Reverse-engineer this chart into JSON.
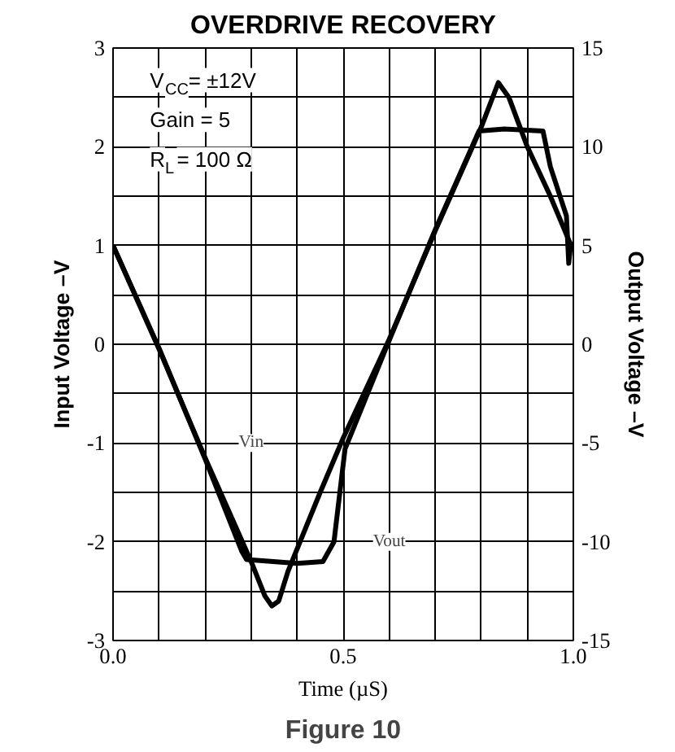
{
  "chart_data": {
    "type": "line",
    "title": "OVERDRIVE RECOVERY",
    "xlabel": "Time (µS)",
    "ylabel": "Input Voltage –V",
    "y2label": "Output Voltage –V",
    "annotations": [
      "V$_{CC}$= ±12V",
      "Gain = 5",
      "R$_{L}$= 100 Ω",
      {
        "text": "Vin",
        "x": 0.3,
        "y": -1
      },
      {
        "text": "Vout",
        "x": 0.6,
        "y": -2
      },
      "Figure 10"
    ],
    "series": [
      {
        "color": "#000000",
        "x": [
          0,
          0.1,
          0.2,
          0.3,
          0.33,
          0.345,
          0.36,
          0.38,
          0.45,
          0.5,
          0.6,
          0.7,
          0.8,
          0.837,
          0.86,
          0.9,
          0.95,
          0.995
        ],
        "values": [
          1,
          -0.05,
          -1.15,
          -2.2,
          -2.55,
          -2.65,
          -2.6,
          -2.3,
          -1.5,
          -0.95,
          0.05,
          1.15,
          2.2,
          2.65,
          2.5,
          2.0,
          1.5,
          1.0
        ]
      },
      {
        "color": "#000000",
        "axis": "y2",
        "x": [
          0,
          0.1,
          0.2,
          0.28,
          0.29,
          0.4,
          0.456,
          0.48,
          0.504,
          0.6,
          0.7,
          0.78,
          0.795,
          0.85,
          0.934,
          0.95,
          0.985,
          0.99,
          0.995
        ],
        "values": [
          5,
          -0.2,
          -5.8,
          -10.5,
          -10.9,
          -11.1,
          -11,
          -10,
          -5.3,
          0.2,
          5.8,
          10,
          10.8,
          10.9,
          10.8,
          9,
          6.5,
          4.1,
          5.2
        ]
      }
    ],
    "xlim": [
      0,
      1
    ],
    "xticks": [
      {
        "value": 0,
        "label": "0.0"
      },
      {
        "value": 0.1,
        "label": null
      },
      {
        "value": 0.2,
        "label": null
      },
      {
        "value": 0.3,
        "label": null
      },
      {
        "value": 0.4,
        "label": null
      },
      {
        "value": 0.5,
        "label": "0.5"
      },
      {
        "value": 0.6,
        "label": null
      },
      {
        "value": 0.7,
        "label": null
      },
      {
        "value": 0.8,
        "label": null
      },
      {
        "value": 0.9,
        "label": null
      },
      {
        "value": 1,
        "label": "1.0"
      }
    ],
    "ylim": [
      -3,
      3
    ],
    "yticks": [
      -3,
      {
        "value": -2.5,
        "label": null
      },
      -2,
      {
        "value": -1.5,
        "label": null
      },
      -1,
      {
        "value": -0.5,
        "label": null
      },
      0,
      {
        "value": 0.5,
        "label": null
      },
      1,
      {
        "value": 1.5,
        "label": null
      },
      2,
      {
        "value": 2.5,
        "label": null
      },
      3
    ],
    "y2lim": [
      -15,
      15
    ],
    "y2ticks": [
      -15,
      -10,
      -5,
      0,
      5,
      10,
      15
    ],
    "grid": true,
    "line_style": "solid",
    "marker": "none"
  }
}
